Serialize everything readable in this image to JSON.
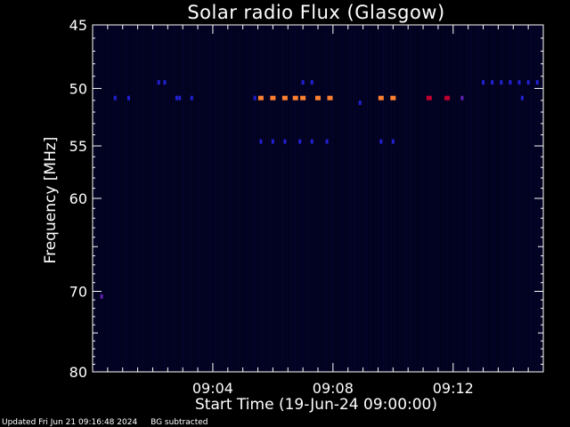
{
  "chart_data": {
    "type": "heatmap",
    "title": "Solar radio Flux (Glasgow)",
    "ylabel": "Frequency [MHz]",
    "xlabel": "Start Time (19-Jun-24 09:00:00)",
    "xlim_minutes": [
      0,
      15
    ],
    "ylim_mhz": [
      45,
      80
    ],
    "y_scale": "log",
    "y_ticks": [
      45,
      50,
      55,
      60,
      70,
      80
    ],
    "x_ticks": [
      {
        "minute": 4,
        "label": "09:04"
      },
      {
        "minute": 8,
        "label": "09:08"
      },
      {
        "minute": 12,
        "label": "09:12"
      }
    ],
    "background_color": "#02021e",
    "colors": {
      "weak": "#2020d0",
      "medium": "#6020b0",
      "strong_red": "#c00030",
      "strong_orange": "#ff8030"
    },
    "bursts": [
      {
        "t": 0.75,
        "f": 50.8,
        "level": "weak"
      },
      {
        "t": 1.2,
        "f": 50.8,
        "level": "weak"
      },
      {
        "t": 2.2,
        "f": 49.5,
        "level": "weak"
      },
      {
        "t": 2.4,
        "f": 49.5,
        "level": "weak"
      },
      {
        "t": 2.8,
        "f": 50.8,
        "level": "weak"
      },
      {
        "t": 2.9,
        "f": 50.8,
        "level": "weak"
      },
      {
        "t": 3.3,
        "f": 50.8,
        "level": "weak"
      },
      {
        "t": 5.4,
        "f": 50.8,
        "level": "weak"
      },
      {
        "t": 5.6,
        "f": 50.8,
        "level": "strong_orange"
      },
      {
        "t": 6.0,
        "f": 50.8,
        "level": "strong_orange"
      },
      {
        "t": 6.4,
        "f": 50.8,
        "level": "strong_orange"
      },
      {
        "t": 6.75,
        "f": 50.8,
        "level": "strong_orange"
      },
      {
        "t": 7.0,
        "f": 50.8,
        "level": "strong_orange"
      },
      {
        "t": 7.5,
        "f": 50.8,
        "level": "strong_orange"
      },
      {
        "t": 7.9,
        "f": 50.8,
        "level": "strong_orange"
      },
      {
        "t": 5.6,
        "f": 54.6,
        "level": "weak"
      },
      {
        "t": 6.0,
        "f": 54.6,
        "level": "weak"
      },
      {
        "t": 6.4,
        "f": 54.6,
        "level": "weak"
      },
      {
        "t": 6.9,
        "f": 54.6,
        "level": "weak"
      },
      {
        "t": 7.3,
        "f": 54.6,
        "level": "weak"
      },
      {
        "t": 7.8,
        "f": 54.6,
        "level": "weak"
      },
      {
        "t": 7.0,
        "f": 49.5,
        "level": "weak"
      },
      {
        "t": 7.3,
        "f": 49.5,
        "level": "weak"
      },
      {
        "t": 8.9,
        "f": 51.2,
        "level": "weak"
      },
      {
        "t": 9.6,
        "f": 50.8,
        "level": "strong_orange"
      },
      {
        "t": 10.0,
        "f": 50.8,
        "level": "strong_orange"
      },
      {
        "t": 9.6,
        "f": 54.6,
        "level": "weak"
      },
      {
        "t": 10.0,
        "f": 54.6,
        "level": "weak"
      },
      {
        "t": 11.2,
        "f": 50.8,
        "level": "strong_red"
      },
      {
        "t": 11.8,
        "f": 50.8,
        "level": "strong_red"
      },
      {
        "t": 12.3,
        "f": 50.8,
        "level": "medium"
      },
      {
        "t": 13.0,
        "f": 49.5,
        "level": "weak"
      },
      {
        "t": 13.3,
        "f": 49.5,
        "level": "weak"
      },
      {
        "t": 13.6,
        "f": 49.5,
        "level": "weak"
      },
      {
        "t": 13.9,
        "f": 49.5,
        "level": "weak"
      },
      {
        "t": 14.2,
        "f": 49.5,
        "level": "weak"
      },
      {
        "t": 14.5,
        "f": 49.5,
        "level": "weak"
      },
      {
        "t": 14.8,
        "f": 49.5,
        "level": "weak"
      },
      {
        "t": 14.3,
        "f": 50.8,
        "level": "weak"
      },
      {
        "t": 0.3,
        "f": 70.6,
        "level": "medium"
      }
    ]
  },
  "footer": {
    "updated": "Updated Fri Jun 21 09:16:48 2024",
    "note": "BG subtracted"
  }
}
